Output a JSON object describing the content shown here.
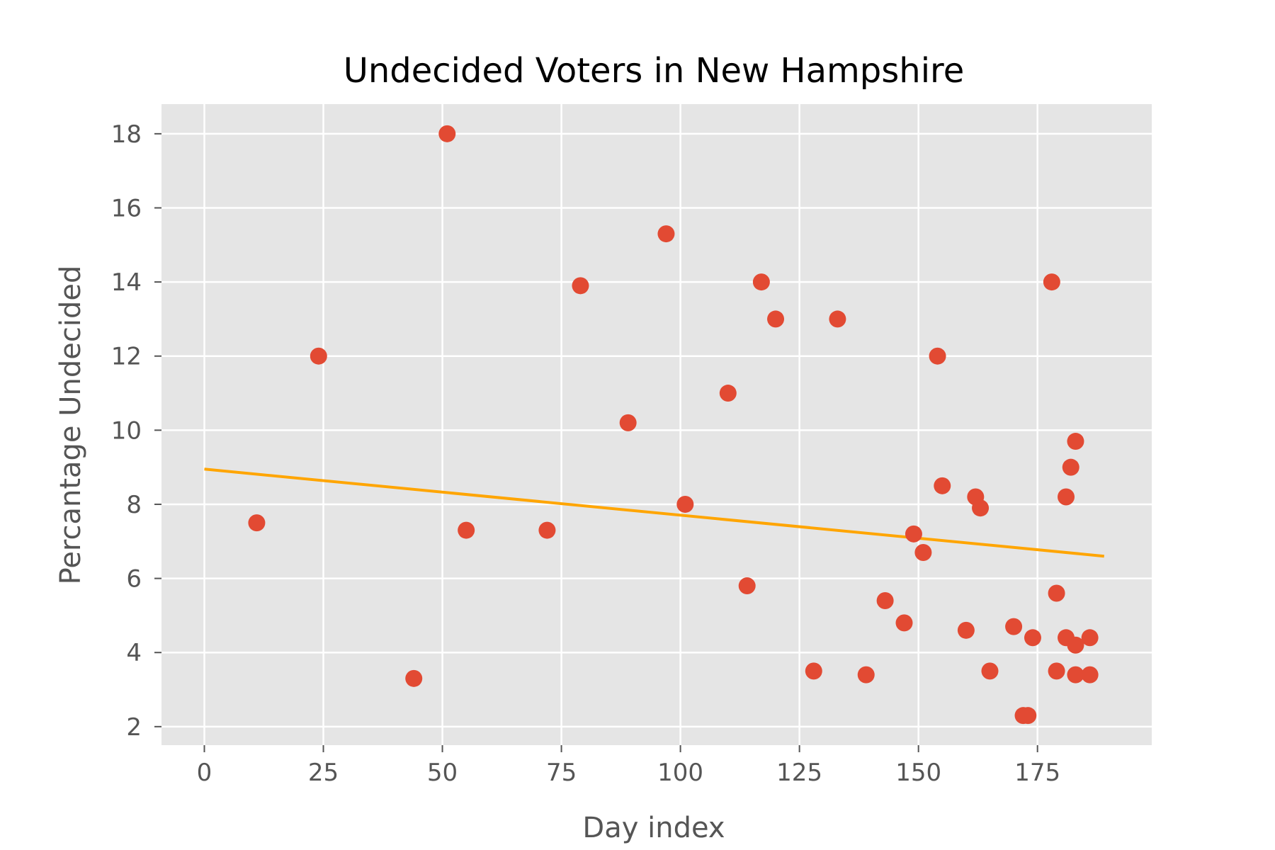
{
  "colors": {
    "plot_background": "#e5e5e5",
    "grid": "#ffffff",
    "points": "#e24a33",
    "trend_line": "#ffa500",
    "tick_mark": "#555555",
    "text": "#555555",
    "title": "#000000"
  },
  "chart_data": {
    "type": "scatter",
    "title": "Undecided Voters in New Hampshire",
    "xlabel": "Day index",
    "ylabel": "Percantage Undecided",
    "xlim": [
      -9,
      199
    ],
    "ylim": [
      1.5,
      18.8
    ],
    "xticks": [
      0,
      25,
      50,
      75,
      100,
      125,
      150,
      175
    ],
    "yticks": [
      2,
      4,
      6,
      8,
      10,
      12,
      14,
      16,
      18
    ],
    "grid": true,
    "legend": "none",
    "series": [
      {
        "type": "scatter",
        "x": [
          11,
          24,
          44,
          51,
          55,
          72,
          79,
          89,
          97,
          101,
          110,
          114,
          117,
          120,
          128,
          133,
          139,
          143,
          147,
          149,
          151,
          154,
          155,
          160,
          162,
          163,
          165,
          170,
          172,
          173,
          174,
          178,
          179,
          179,
          181,
          181,
          182,
          183,
          183,
          183,
          186,
          186
        ],
        "y": [
          7.5,
          12.0,
          3.3,
          18.0,
          7.3,
          7.3,
          13.9,
          10.2,
          15.3,
          8.0,
          11.0,
          5.8,
          14.0,
          13.0,
          3.5,
          13.0,
          3.4,
          5.4,
          4.8,
          7.2,
          6.7,
          12.0,
          8.5,
          4.6,
          8.2,
          7.9,
          3.5,
          4.7,
          2.3,
          2.3,
          4.4,
          14.0,
          5.6,
          3.5,
          4.4,
          8.2,
          9.0,
          9.7,
          4.2,
          3.4,
          4.4,
          3.4
        ]
      },
      {
        "type": "line",
        "x": [
          0,
          189
        ],
        "y": [
          8.95,
          6.6
        ]
      }
    ]
  }
}
